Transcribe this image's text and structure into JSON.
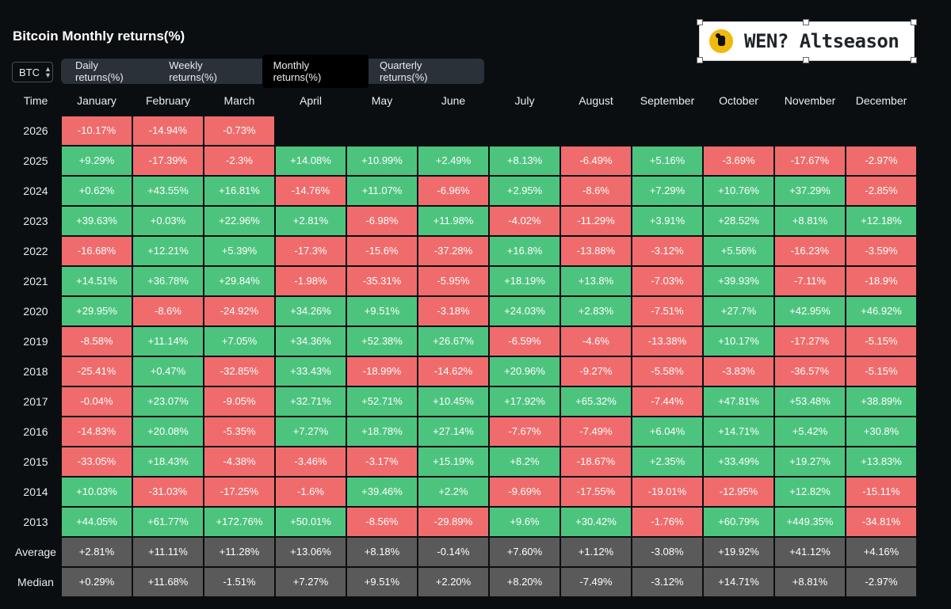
{
  "title": "Bitcoin Monthly returns(%)",
  "logo": {
    "text": "WEN? Altseason"
  },
  "asset_select": {
    "value": "BTC"
  },
  "tabs": [
    {
      "label": "Daily returns(%)",
      "active": false
    },
    {
      "label": "Weekly returns(%)",
      "active": false
    },
    {
      "label": "Monthly returns(%)",
      "active": true
    },
    {
      "label": "Quarterly returns(%)",
      "active": false
    }
  ],
  "colors": {
    "positive": "#4dc47e",
    "negative": "#f06c6c",
    "stat": "#5a5a5a"
  },
  "chart_data": {
    "type": "table",
    "title": "Bitcoin Monthly returns(%)",
    "time_header": "Time",
    "columns": [
      "January",
      "February",
      "March",
      "April",
      "May",
      "June",
      "July",
      "August",
      "September",
      "October",
      "November",
      "December"
    ],
    "rows": [
      {
        "year": "2026",
        "values": [
          "-10.17%",
          "-14.94%",
          "-0.73%"
        ]
      },
      {
        "year": "2025",
        "values": [
          "+9.29%",
          "-17.39%",
          "-2.3%",
          "+14.08%",
          "+10.99%",
          "+2.49%",
          "+8.13%",
          "-6.49%",
          "+5.16%",
          "-3.69%",
          "-17.67%",
          "-2.97%"
        ]
      },
      {
        "year": "2024",
        "values": [
          "+0.62%",
          "+43.55%",
          "+16.81%",
          "-14.76%",
          "+11.07%",
          "-6.96%",
          "+2.95%",
          "-8.6%",
          "+7.29%",
          "+10.76%",
          "+37.29%",
          "-2.85%"
        ]
      },
      {
        "year": "2023",
        "values": [
          "+39.63%",
          "+0.03%",
          "+22.96%",
          "+2.81%",
          "-6.98%",
          "+11.98%",
          "-4.02%",
          "-11.29%",
          "+3.91%",
          "+28.52%",
          "+8.81%",
          "+12.18%"
        ]
      },
      {
        "year": "2022",
        "values": [
          "-16.68%",
          "+12.21%",
          "+5.39%",
          "-17.3%",
          "-15.6%",
          "-37.28%",
          "+16.8%",
          "-13.88%",
          "-3.12%",
          "+5.56%",
          "-16.23%",
          "-3.59%"
        ]
      },
      {
        "year": "2021",
        "values": [
          "+14.51%",
          "+36.78%",
          "+29.84%",
          "-1.98%",
          "-35.31%",
          "-5.95%",
          "+18.19%",
          "+13.8%",
          "-7.03%",
          "+39.93%",
          "-7.11%",
          "-18.9%"
        ]
      },
      {
        "year": "2020",
        "values": [
          "+29.95%",
          "-8.6%",
          "-24.92%",
          "+34.26%",
          "+9.51%",
          "-3.18%",
          "+24.03%",
          "+2.83%",
          "-7.51%",
          "+27.7%",
          "+42.95%",
          "+46.92%"
        ]
      },
      {
        "year": "2019",
        "values": [
          "-8.58%",
          "+11.14%",
          "+7.05%",
          "+34.36%",
          "+52.38%",
          "+26.67%",
          "-6.59%",
          "-4.6%",
          "-13.38%",
          "+10.17%",
          "-17.27%",
          "-5.15%"
        ]
      },
      {
        "year": "2018",
        "values": [
          "-25.41%",
          "+0.47%",
          "-32.85%",
          "+33.43%",
          "-18.99%",
          "-14.62%",
          "+20.96%",
          "-9.27%",
          "-5.58%",
          "-3.83%",
          "-36.57%",
          "-5.15%"
        ]
      },
      {
        "year": "2017",
        "values": [
          "-0.04%",
          "+23.07%",
          "-9.05%",
          "+32.71%",
          "+52.71%",
          "+10.45%",
          "+17.92%",
          "+65.32%",
          "-7.44%",
          "+47.81%",
          "+53.48%",
          "+38.89%"
        ]
      },
      {
        "year": "2016",
        "values": [
          "-14.83%",
          "+20.08%",
          "-5.35%",
          "+7.27%",
          "+18.78%",
          "+27.14%",
          "-7.67%",
          "-7.49%",
          "+6.04%",
          "+14.71%",
          "+5.42%",
          "+30.8%"
        ]
      },
      {
        "year": "2015",
        "values": [
          "-33.05%",
          "+18.43%",
          "-4.38%",
          "-3.46%",
          "-3.17%",
          "+15.19%",
          "+8.2%",
          "-18.67%",
          "+2.35%",
          "+33.49%",
          "+19.27%",
          "+13.83%"
        ]
      },
      {
        "year": "2014",
        "values": [
          "+10.03%",
          "-31.03%",
          "-17.25%",
          "-1.6%",
          "+39.46%",
          "+2.2%",
          "-9.69%",
          "-17.55%",
          "-19.01%",
          "-12.95%",
          "+12.82%",
          "-15.11%"
        ]
      },
      {
        "year": "2013",
        "values": [
          "+44.05%",
          "+61.77%",
          "+172.76%",
          "+50.01%",
          "-8.56%",
          "-29.89%",
          "+9.6%",
          "+30.42%",
          "-1.76%",
          "+60.79%",
          "+449.35%",
          "-34.81%"
        ]
      }
    ],
    "summary": [
      {
        "label": "Average",
        "values": [
          "+2.81%",
          "+11.11%",
          "+11.28%",
          "+13.06%",
          "+8.18%",
          "-0.14%",
          "+7.60%",
          "+1.12%",
          "-3.08%",
          "+19.92%",
          "+41.12%",
          "+4.16%"
        ]
      },
      {
        "label": "Median",
        "values": [
          "+0.29%",
          "+11.68%",
          "-1.51%",
          "+7.27%",
          "+9.51%",
          "+2.20%",
          "+8.20%",
          "-7.49%",
          "-3.12%",
          "+14.71%",
          "+8.81%",
          "-2.97%"
        ]
      }
    ]
  }
}
